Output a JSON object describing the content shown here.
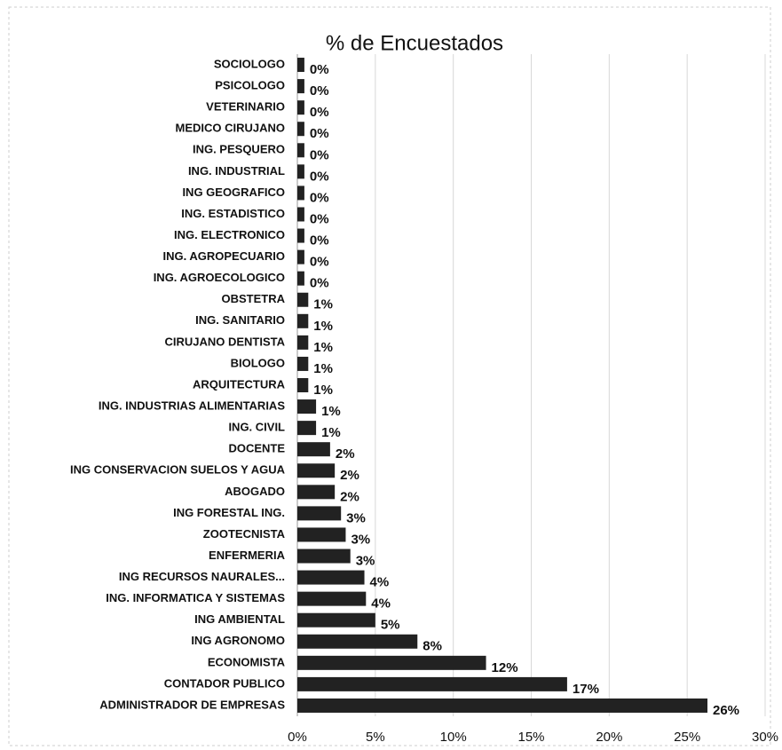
{
  "chart_data": {
    "type": "barh",
    "title": "% de Encuestados",
    "categories": [
      "SOCIOLOGO",
      "PSICOLOGO",
      "VETERINARIO",
      "MEDICO CIRUJANO",
      "ING. PESQUERO",
      "ING. INDUSTRIAL",
      "ING GEOGRAFICO",
      "ING. ESTADISTICO",
      "ING. ELECTRONICO",
      "ING. AGROPECUARIO",
      "ING. AGROECOLOGICO",
      "OBSTETRA",
      "ING. SANITARIO",
      "CIRUJANO DENTISTA",
      "BIOLOGO",
      "ARQUITECTURA",
      "ING. INDUSTRIAS ALIMENTARIAS",
      "ING. CIVIL",
      "DOCENTE",
      "ING CONSERVACION SUELOS Y AGUA",
      "ABOGADO",
      "ING FORESTAL ING.",
      "ZOOTECNISTA",
      "ENFERMERIA",
      "ING RECURSOS NAURALES...",
      "ING. INFORMATICA Y SISTEMAS",
      "ING AMBIENTAL",
      "ING AGRONOMO",
      "ECONOMISTA",
      "CONTADOR PUBLICO",
      "ADMINISTRADOR DE EMPRESAS"
    ],
    "values": [
      0.45,
      0.45,
      0.45,
      0.45,
      0.45,
      0.45,
      0.45,
      0.45,
      0.45,
      0.45,
      0.45,
      0.7,
      0.7,
      0.7,
      0.7,
      0.7,
      1.2,
      1.2,
      2.1,
      2.4,
      2.4,
      2.8,
      3.1,
      3.4,
      4.3,
      4.4,
      5.0,
      7.7,
      12.1,
      17.3,
      26.3
    ],
    "value_labels": [
      "0%",
      "0%",
      "0%",
      "0%",
      "0%",
      "0%",
      "0%",
      "0%",
      "0%",
      "0%",
      "0%",
      "1%",
      "1%",
      "1%",
      "1%",
      "1%",
      "1%",
      "1%",
      "2%",
      "2%",
      "2%",
      "3%",
      "3%",
      "3%",
      "4%",
      "4%",
      "5%",
      "8%",
      "12%",
      "17%",
      "26%"
    ],
    "color": "#222222",
    "xlim": [
      0,
      30
    ],
    "xticks": [
      {
        "value": 0,
        "label": "0%"
      },
      {
        "value": 5,
        "label": "5%"
      },
      {
        "value": 10,
        "label": "10%"
      },
      {
        "value": 15,
        "label": "15%"
      },
      {
        "value": 20,
        "label": "20%"
      },
      {
        "value": 25,
        "label": "25%"
      },
      {
        "value": 30,
        "label": "30%"
      }
    ],
    "grid": true
  }
}
